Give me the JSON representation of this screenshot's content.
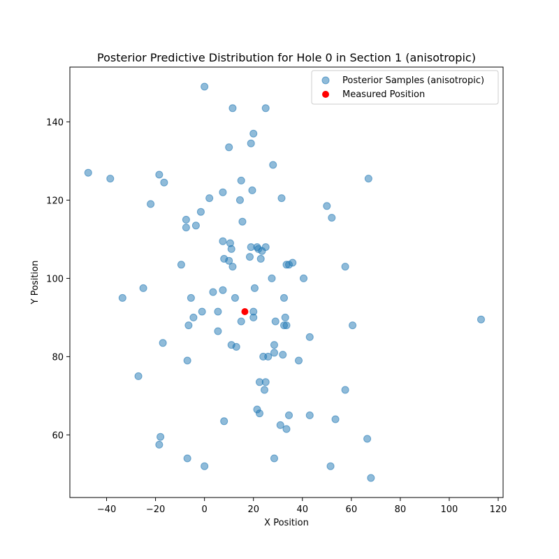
{
  "chart_data": {
    "type": "scatter",
    "title": "Posterior Predictive Distribution for Hole 0 in Section 1 (anisotropic)",
    "xlabel": "X Position",
    "ylabel": "Y Position",
    "xlim": [
      -55,
      122
    ],
    "ylim": [
      44,
      154
    ],
    "xticks": [
      -40,
      -20,
      0,
      20,
      40,
      60,
      80,
      100,
      120
    ],
    "yticks": [
      60,
      80,
      100,
      120,
      140
    ],
    "grid": false,
    "legend_position": "top-right",
    "series": [
      {
        "name": "Posterior Samples (anisotropic)",
        "color": "#1f77b4",
        "points": [
          [
            0,
            149
          ],
          [
            11.5,
            143.5
          ],
          [
            25,
            143.5
          ],
          [
            20,
            137
          ],
          [
            10,
            133.5
          ],
          [
            19,
            134.5
          ],
          [
            28,
            129
          ],
          [
            -47.5,
            127
          ],
          [
            -38.5,
            125.5
          ],
          [
            -18.5,
            126.5
          ],
          [
            -16.5,
            124.5
          ],
          [
            15,
            125
          ],
          [
            67,
            125.5
          ],
          [
            7.5,
            122
          ],
          [
            19.5,
            122.5
          ],
          [
            2,
            120.5
          ],
          [
            14.5,
            120
          ],
          [
            31.5,
            120.5
          ],
          [
            -22,
            119
          ],
          [
            50,
            118.5
          ],
          [
            -1.5,
            117
          ],
          [
            52,
            115.5
          ],
          [
            -7.5,
            115
          ],
          [
            15.5,
            114.5
          ],
          [
            -7.5,
            113
          ],
          [
            -3.5,
            113.5
          ],
          [
            7.5,
            109.5
          ],
          [
            10.5,
            109
          ],
          [
            11,
            107.5
          ],
          [
            19,
            108
          ],
          [
            21.5,
            108
          ],
          [
            22,
            107.5
          ],
          [
            23.5,
            107
          ],
          [
            25,
            108
          ],
          [
            18.5,
            105.5
          ],
          [
            8,
            105
          ],
          [
            10,
            104.5
          ],
          [
            23,
            105
          ],
          [
            -9.5,
            103.5
          ],
          [
            11.5,
            103
          ],
          [
            33.5,
            103.5
          ],
          [
            34.5,
            103.5
          ],
          [
            36,
            104
          ],
          [
            57.5,
            103
          ],
          [
            27.5,
            100
          ],
          [
            40.5,
            100
          ],
          [
            -25,
            97.5
          ],
          [
            3.5,
            96.5
          ],
          [
            7.5,
            97
          ],
          [
            20.5,
            97.5
          ],
          [
            -33.5,
            95
          ],
          [
            -5.5,
            95
          ],
          [
            12.5,
            95
          ],
          [
            32.5,
            95
          ],
          [
            -1,
            91.5
          ],
          [
            5.5,
            91.5
          ],
          [
            20,
            91.5
          ],
          [
            20,
            90
          ],
          [
            33,
            90
          ],
          [
            -4.5,
            90
          ],
          [
            -6.5,
            88
          ],
          [
            15,
            89
          ],
          [
            29,
            89
          ],
          [
            32.5,
            88
          ],
          [
            33.5,
            88
          ],
          [
            60.5,
            88
          ],
          [
            113,
            89.5
          ],
          [
            5.5,
            86.5
          ],
          [
            43,
            85
          ],
          [
            -17,
            83.5
          ],
          [
            11,
            83
          ],
          [
            13,
            82.5
          ],
          [
            28.5,
            83
          ],
          [
            28.5,
            81
          ],
          [
            32,
            80.5
          ],
          [
            24,
            80
          ],
          [
            26,
            80
          ],
          [
            38.5,
            79
          ],
          [
            -7,
            79
          ],
          [
            -27,
            75
          ],
          [
            22.5,
            73.5
          ],
          [
            25,
            73.5
          ],
          [
            57.5,
            71.5
          ],
          [
            24.5,
            71.5
          ],
          [
            21.5,
            66.5
          ],
          [
            22.5,
            65.5
          ],
          [
            34.5,
            65
          ],
          [
            43,
            65
          ],
          [
            53.5,
            64
          ],
          [
            8,
            63.5
          ],
          [
            31,
            62.5
          ],
          [
            33.5,
            61.5
          ],
          [
            -18,
            59.5
          ],
          [
            66.5,
            59
          ],
          [
            -18.5,
            57.5
          ],
          [
            -7,
            54
          ],
          [
            28.5,
            54
          ],
          [
            0,
            52
          ],
          [
            51.5,
            52
          ],
          [
            68,
            49
          ]
        ]
      },
      {
        "name": "Measured Position",
        "color": "#ff0000",
        "points": [
          [
            16.5,
            91.5
          ]
        ]
      }
    ]
  }
}
